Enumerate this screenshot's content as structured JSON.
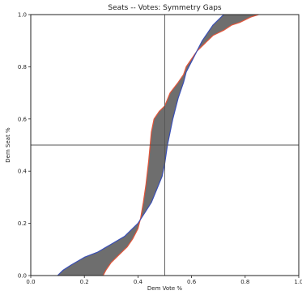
{
  "chart": {
    "title": "Seats -- Votes: Symmetry Gaps",
    "xlabel": "Dem Vote %",
    "ylabel": "Dem Seat %"
  },
  "colors": {
    "fill": "#6e6e6e",
    "curve_red": "#e3553a",
    "curve_blue": "#3a4fb5",
    "ref_line": "#555555",
    "axis": "#222222"
  },
  "chart_data": {
    "type": "area",
    "title": "Seats -- Votes: Symmetry Gaps",
    "xlabel": "Dem Vote %",
    "ylabel": "Dem Seat %",
    "xlim": [
      0.0,
      1.0
    ],
    "ylim": [
      0.0,
      1.0
    ],
    "xticks": [
      "0.0",
      "0.2",
      "0.4",
      "0.6",
      "0.8",
      "1.0"
    ],
    "yticks": [
      "0.0",
      "0.2",
      "0.4",
      "0.6",
      "0.8",
      "1.0"
    ],
    "reference_lines": {
      "x": 0.5,
      "y": 0.5
    },
    "grid": false,
    "series": [
      {
        "color": "red",
        "x": [
          0.27,
          0.28,
          0.3,
          0.33,
          0.36,
          0.38,
          0.4,
          0.41,
          0.42,
          0.43,
          0.44,
          0.45,
          0.46,
          0.48,
          0.5,
          0.52,
          0.55,
          0.57,
          0.58,
          0.6,
          0.62,
          0.64,
          0.66,
          0.68,
          0.72,
          0.75,
          0.78,
          0.82,
          0.85
        ],
        "y": [
          0.0,
          0.02,
          0.05,
          0.08,
          0.11,
          0.14,
          0.18,
          0.22,
          0.28,
          0.35,
          0.44,
          0.55,
          0.6,
          0.63,
          0.65,
          0.7,
          0.74,
          0.77,
          0.8,
          0.83,
          0.86,
          0.88,
          0.9,
          0.92,
          0.94,
          0.96,
          0.97,
          0.99,
          1.0
        ]
      },
      {
        "color": "blue",
        "x": [
          0.1,
          0.12,
          0.15,
          0.2,
          0.25,
          0.3,
          0.35,
          0.4,
          0.45,
          0.47,
          0.49,
          0.5,
          0.51,
          0.53,
          0.55,
          0.57,
          0.58,
          0.6,
          0.62,
          0.64,
          0.66,
          0.68,
          0.7,
          0.72
        ],
        "y": [
          0.0,
          0.02,
          0.04,
          0.07,
          0.09,
          0.12,
          0.15,
          0.2,
          0.28,
          0.33,
          0.38,
          0.43,
          0.5,
          0.6,
          0.68,
          0.74,
          0.78,
          0.82,
          0.86,
          0.9,
          0.93,
          0.96,
          0.98,
          1.0
        ]
      }
    ]
  }
}
